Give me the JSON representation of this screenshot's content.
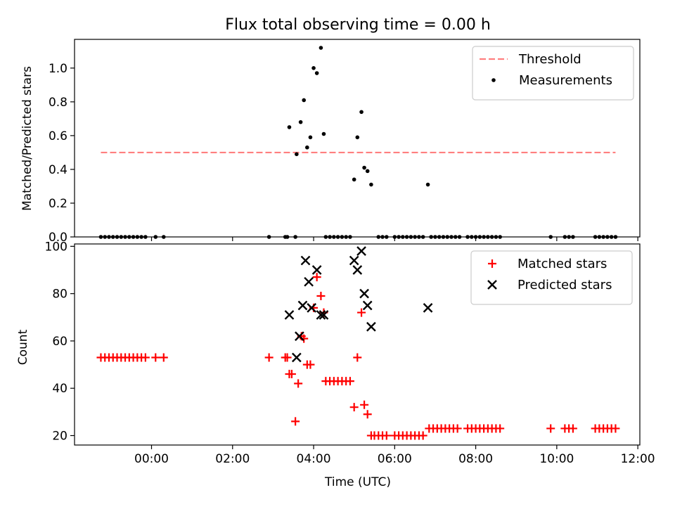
{
  "chart_data": {
    "title": "Flux total observing time = 0.00 h",
    "xlabel": "Time (UTC)",
    "x_ticks": [
      "00:00",
      "02:00",
      "04:00",
      "06:00",
      "08:00",
      "10:00",
      "12:00"
    ],
    "x_tick_hours": [
      0,
      2,
      4,
      6,
      8,
      10,
      12
    ],
    "xlim_hours": [
      -1.9,
      12.05
    ],
    "panels": [
      {
        "type": "scatter",
        "ylabel": "Matched/Predicted stars",
        "ylim": [
          0,
          1.17
        ],
        "y_ticks": [
          "0.0",
          "0.2",
          "0.4",
          "0.6",
          "0.8",
          "1.0"
        ],
        "y_tick_values": [
          0,
          0.2,
          0.4,
          0.6,
          0.8,
          1.0
        ],
        "legend_position": "upper right",
        "threshold": {
          "name": "Threshold",
          "value": 0.5,
          "x_range": [
            -1.25,
            11.45
          ],
          "color": "#ff7f7f"
        },
        "series": [
          {
            "name": "Measurements",
            "color": "#000000",
            "marker": "dot",
            "points": [
              [
                -1.25,
                0
              ],
              [
                -1.15,
                0
              ],
              [
                -1.05,
                0
              ],
              [
                -0.95,
                0
              ],
              [
                -0.85,
                0
              ],
              [
                -0.75,
                0
              ],
              [
                -0.65,
                0
              ],
              [
                -0.55,
                0
              ],
              [
                -0.45,
                0
              ],
              [
                -0.35,
                0
              ],
              [
                -0.25,
                0
              ],
              [
                -0.15,
                0
              ],
              [
                0.1,
                0
              ],
              [
                0.3,
                0
              ],
              [
                2.9,
                0
              ],
              [
                3.3,
                0
              ],
              [
                3.35,
                0
              ],
              [
                3.55,
                0
              ],
              [
                3.4,
                0.65
              ],
              [
                3.58,
                0.49
              ],
              [
                3.68,
                0.68
              ],
              [
                3.76,
                0.81
              ],
              [
                3.84,
                0.53
              ],
              [
                3.92,
                0.59
              ],
              [
                4.0,
                1.0
              ],
              [
                4.08,
                0.97
              ],
              [
                4.18,
                1.12
              ],
              [
                4.25,
                0.61
              ],
              [
                4.3,
                0
              ],
              [
                4.4,
                0
              ],
              [
                4.5,
                0
              ],
              [
                4.6,
                0
              ],
              [
                4.7,
                0
              ],
              [
                4.8,
                0
              ],
              [
                4.9,
                0
              ],
              [
                5.0,
                0.34
              ],
              [
                5.08,
                0.59
              ],
              [
                5.18,
                0.74
              ],
              [
                5.25,
                0.41
              ],
              [
                5.33,
                0.39
              ],
              [
                5.42,
                0.31
              ],
              [
                5.6,
                0
              ],
              [
                5.7,
                0
              ],
              [
                5.8,
                0
              ],
              [
                6.0,
                0
              ],
              [
                6.1,
                0
              ],
              [
                6.2,
                0
              ],
              [
                6.3,
                0
              ],
              [
                6.4,
                0
              ],
              [
                6.5,
                0
              ],
              [
                6.6,
                0
              ],
              [
                6.7,
                0
              ],
              [
                6.82,
                0.31
              ],
              [
                6.9,
                0
              ],
              [
                7.0,
                0
              ],
              [
                7.1,
                0
              ],
              [
                7.2,
                0
              ],
              [
                7.3,
                0
              ],
              [
                7.4,
                0
              ],
              [
                7.5,
                0
              ],
              [
                7.6,
                0
              ],
              [
                7.8,
                0
              ],
              [
                7.9,
                0
              ],
              [
                8.0,
                0
              ],
              [
                8.1,
                0
              ],
              [
                8.2,
                0
              ],
              [
                8.3,
                0
              ],
              [
                8.4,
                0
              ],
              [
                8.5,
                0
              ],
              [
                8.6,
                0
              ],
              [
                9.85,
                0
              ],
              [
                10.2,
                0
              ],
              [
                10.3,
                0
              ],
              [
                10.4,
                0
              ],
              [
                10.95,
                0
              ],
              [
                11.05,
                0
              ],
              [
                11.15,
                0
              ],
              [
                11.25,
                0
              ],
              [
                11.35,
                0
              ],
              [
                11.45,
                0
              ]
            ]
          }
        ]
      },
      {
        "type": "scatter",
        "ylabel": "Count",
        "ylim": [
          16,
          101
        ],
        "y_ticks": [
          "20",
          "40",
          "60",
          "80",
          "100"
        ],
        "y_tick_values": [
          20,
          40,
          60,
          80,
          100
        ],
        "legend_position": "upper right",
        "series": [
          {
            "name": "Matched stars",
            "color": "#ff0000",
            "marker": "plus",
            "points": [
              [
                -1.25,
                53
              ],
              [
                -1.15,
                53
              ],
              [
                -1.05,
                53
              ],
              [
                -0.95,
                53
              ],
              [
                -0.85,
                53
              ],
              [
                -0.75,
                53
              ],
              [
                -0.65,
                53
              ],
              [
                -0.55,
                53
              ],
              [
                -0.45,
                53
              ],
              [
                -0.35,
                53
              ],
              [
                -0.25,
                53
              ],
              [
                -0.15,
                53
              ],
              [
                0.1,
                53
              ],
              [
                0.3,
                53
              ],
              [
                2.9,
                53
              ],
              [
                3.3,
                53
              ],
              [
                3.35,
                53
              ],
              [
                3.4,
                46
              ],
              [
                3.46,
                46
              ],
              [
                3.55,
                26
              ],
              [
                3.62,
                42
              ],
              [
                3.7,
                62
              ],
              [
                3.76,
                61
              ],
              [
                3.84,
                50
              ],
              [
                3.92,
                50
              ],
              [
                4.0,
                74
              ],
              [
                4.08,
                87
              ],
              [
                4.18,
                79
              ],
              [
                4.25,
                72
              ],
              [
                4.3,
                43
              ],
              [
                4.4,
                43
              ],
              [
                4.5,
                43
              ],
              [
                4.6,
                43
              ],
              [
                4.7,
                43
              ],
              [
                4.8,
                43
              ],
              [
                4.9,
                43
              ],
              [
                5.0,
                32
              ],
              [
                5.08,
                53
              ],
              [
                5.18,
                72
              ],
              [
                5.25,
                33
              ],
              [
                5.33,
                29
              ],
              [
                5.42,
                20
              ],
              [
                5.5,
                20
              ],
              [
                5.6,
                20
              ],
              [
                5.7,
                20
              ],
              [
                5.8,
                20
              ],
              [
                6.0,
                20
              ],
              [
                6.1,
                20
              ],
              [
                6.2,
                20
              ],
              [
                6.3,
                20
              ],
              [
                6.4,
                20
              ],
              [
                6.5,
                20
              ],
              [
                6.6,
                20
              ],
              [
                6.7,
                20
              ],
              [
                6.85,
                23
              ],
              [
                6.95,
                23
              ],
              [
                7.05,
                23
              ],
              [
                7.15,
                23
              ],
              [
                7.25,
                23
              ],
              [
                7.35,
                23
              ],
              [
                7.45,
                23
              ],
              [
                7.55,
                23
              ],
              [
                7.8,
                23
              ],
              [
                7.9,
                23
              ],
              [
                8.0,
                23
              ],
              [
                8.1,
                23
              ],
              [
                8.2,
                23
              ],
              [
                8.3,
                23
              ],
              [
                8.4,
                23
              ],
              [
                8.5,
                23
              ],
              [
                8.6,
                23
              ],
              [
                9.85,
                23
              ],
              [
                10.2,
                23
              ],
              [
                10.3,
                23
              ],
              [
                10.4,
                23
              ],
              [
                10.95,
                23
              ],
              [
                11.05,
                23
              ],
              [
                11.15,
                23
              ],
              [
                11.25,
                23
              ],
              [
                11.35,
                23
              ],
              [
                11.45,
                23
              ]
            ]
          },
          {
            "name": "Predicted stars",
            "color": "#000000",
            "marker": "x",
            "points": [
              [
                3.4,
                71
              ],
              [
                3.58,
                53
              ],
              [
                3.65,
                62
              ],
              [
                3.73,
                75
              ],
              [
                3.8,
                94
              ],
              [
                3.88,
                85
              ],
              [
                3.95,
                74
              ],
              [
                4.08,
                90
              ],
              [
                4.18,
                71
              ],
              [
                4.25,
                71
              ],
              [
                5.0,
                94
              ],
              [
                5.08,
                90
              ],
              [
                5.18,
                98
              ],
              [
                5.25,
                80
              ],
              [
                5.33,
                75
              ],
              [
                5.42,
                66
              ],
              [
                6.82,
                74
              ]
            ]
          }
        ]
      }
    ]
  }
}
